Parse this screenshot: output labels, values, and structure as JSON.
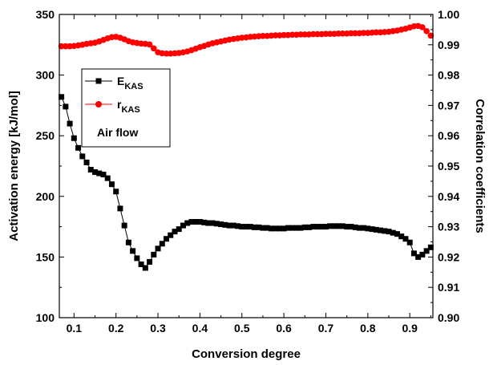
{
  "chart_data": {
    "type": "scatter",
    "xlabel": "Conversion degree",
    "ylabel_left": "Activation energy [kJ/mol]",
    "ylabel_right": "Correlation coefficients",
    "xlim": [
      0.065,
      0.955
    ],
    "ylim_left": [
      100,
      350
    ],
    "ylim_right": [
      0.9,
      1.0
    ],
    "x_ticks": [
      "0.1",
      "0.2",
      "0.3",
      "0.4",
      "0.5",
      "0.6",
      "0.7",
      "0.8",
      "0.9"
    ],
    "y_left_ticks": [
      "100",
      "150",
      "200",
      "250",
      "300",
      "350"
    ],
    "y_right_ticks": [
      "0.90",
      "0.91",
      "0.92",
      "0.93",
      "0.94",
      "0.95",
      "0.96",
      "0.97",
      "0.98",
      "0.99",
      "1.00"
    ],
    "legend": {
      "placement": "upper-left",
      "entries": [
        {
          "main": "E",
          "sub": "KAS",
          "color": "#000000",
          "marker": "square"
        },
        {
          "main": "r",
          "sub": "KAS",
          "color": "#ff0000",
          "marker": "circle"
        }
      ],
      "note": "Air flow"
    },
    "series": [
      {
        "name": "E_KAS",
        "axis": "left",
        "color": "#000000",
        "marker": "square",
        "x": [
          0.07,
          0.08,
          0.09,
          0.1,
          0.11,
          0.12,
          0.13,
          0.14,
          0.15,
          0.16,
          0.17,
          0.18,
          0.19,
          0.2,
          0.21,
          0.22,
          0.23,
          0.24,
          0.25,
          0.26,
          0.27,
          0.28,
          0.29,
          0.3,
          0.31,
          0.32,
          0.33,
          0.34,
          0.35,
          0.36,
          0.37,
          0.38,
          0.39,
          0.4,
          0.41,
          0.42,
          0.43,
          0.44,
          0.45,
          0.46,
          0.47,
          0.48,
          0.49,
          0.5,
          0.51,
          0.52,
          0.53,
          0.54,
          0.55,
          0.56,
          0.57,
          0.58,
          0.59,
          0.6,
          0.61,
          0.62,
          0.63,
          0.64,
          0.65,
          0.66,
          0.67,
          0.68,
          0.69,
          0.7,
          0.71,
          0.72,
          0.73,
          0.74,
          0.75,
          0.76,
          0.77,
          0.78,
          0.79,
          0.8,
          0.81,
          0.82,
          0.83,
          0.84,
          0.85,
          0.86,
          0.87,
          0.88,
          0.89,
          0.9,
          0.91,
          0.92,
          0.93,
          0.94,
          0.95
        ],
        "y": [
          282,
          274,
          260,
          248,
          240,
          233,
          228,
          222,
          220,
          219,
          218,
          215,
          210,
          204,
          190,
          176,
          162,
          155,
          149,
          144,
          141,
          146,
          152,
          157,
          161,
          165,
          168,
          171,
          173,
          176,
          178,
          179,
          179,
          179,
          178.5,
          178,
          178,
          177.5,
          177,
          176.5,
          176,
          176,
          175.5,
          175,
          175,
          175,
          174.5,
          174.5,
          174,
          174,
          173.5,
          173.5,
          173.5,
          173.5,
          174,
          174,
          174,
          174,
          174.5,
          174.5,
          175,
          175,
          175,
          175,
          175.5,
          175.5,
          175.5,
          175.5,
          175,
          175,
          174.5,
          174,
          174,
          173.5,
          173,
          172.5,
          172,
          171.5,
          171,
          170,
          169,
          167,
          165,
          162,
          153,
          150,
          152,
          155,
          158
        ]
      },
      {
        "name": "r_KAS",
        "axis": "right",
        "color": "#ff0000",
        "marker": "circle",
        "x": [
          0.07,
          0.08,
          0.09,
          0.1,
          0.11,
          0.12,
          0.13,
          0.14,
          0.15,
          0.16,
          0.17,
          0.18,
          0.19,
          0.2,
          0.21,
          0.22,
          0.23,
          0.24,
          0.25,
          0.26,
          0.27,
          0.28,
          0.29,
          0.3,
          0.31,
          0.32,
          0.33,
          0.34,
          0.35,
          0.36,
          0.37,
          0.38,
          0.39,
          0.4,
          0.41,
          0.42,
          0.43,
          0.44,
          0.45,
          0.46,
          0.47,
          0.48,
          0.49,
          0.5,
          0.51,
          0.52,
          0.53,
          0.54,
          0.55,
          0.56,
          0.57,
          0.58,
          0.59,
          0.6,
          0.61,
          0.62,
          0.63,
          0.64,
          0.65,
          0.66,
          0.67,
          0.68,
          0.69,
          0.7,
          0.71,
          0.72,
          0.73,
          0.74,
          0.75,
          0.76,
          0.77,
          0.78,
          0.79,
          0.8,
          0.81,
          0.82,
          0.83,
          0.84,
          0.85,
          0.86,
          0.87,
          0.88,
          0.89,
          0.9,
          0.91,
          0.92,
          0.93,
          0.94,
          0.95
        ],
        "y": [
          0.9895,
          0.9895,
          0.9895,
          0.9896,
          0.9898,
          0.99,
          0.9903,
          0.9905,
          0.9907,
          0.9911,
          0.9916,
          0.9921,
          0.9925,
          0.9926,
          0.9923,
          0.9918,
          0.9912,
          0.9908,
          0.9906,
          0.9904,
          0.9903,
          0.9901,
          0.9888,
          0.9875,
          0.9872,
          0.9871,
          0.9871,
          0.9872,
          0.9873,
          0.9875,
          0.9878,
          0.9882,
          0.9887,
          0.9892,
          0.9896,
          0.9901,
          0.9905,
          0.9908,
          0.9911,
          0.9914,
          0.9917,
          0.9919,
          0.9921,
          0.9923,
          0.9924,
          0.9926,
          0.9927,
          0.9928,
          0.9929,
          0.9929,
          0.993,
          0.9931,
          0.9931,
          0.9932,
          0.9932,
          0.9933,
          0.9933,
          0.9934,
          0.9934,
          0.9934,
          0.9935,
          0.9935,
          0.9935,
          0.9936,
          0.9936,
          0.9936,
          0.9937,
          0.9937,
          0.9937,
          0.9938,
          0.9938,
          0.9938,
          0.9939,
          0.9939,
          0.994,
          0.9941,
          0.9941,
          0.9942,
          0.9943,
          0.9945,
          0.9947,
          0.995,
          0.9953,
          0.9957,
          0.9961,
          0.9962,
          0.9958,
          0.9945,
          0.993
        ]
      }
    ]
  }
}
